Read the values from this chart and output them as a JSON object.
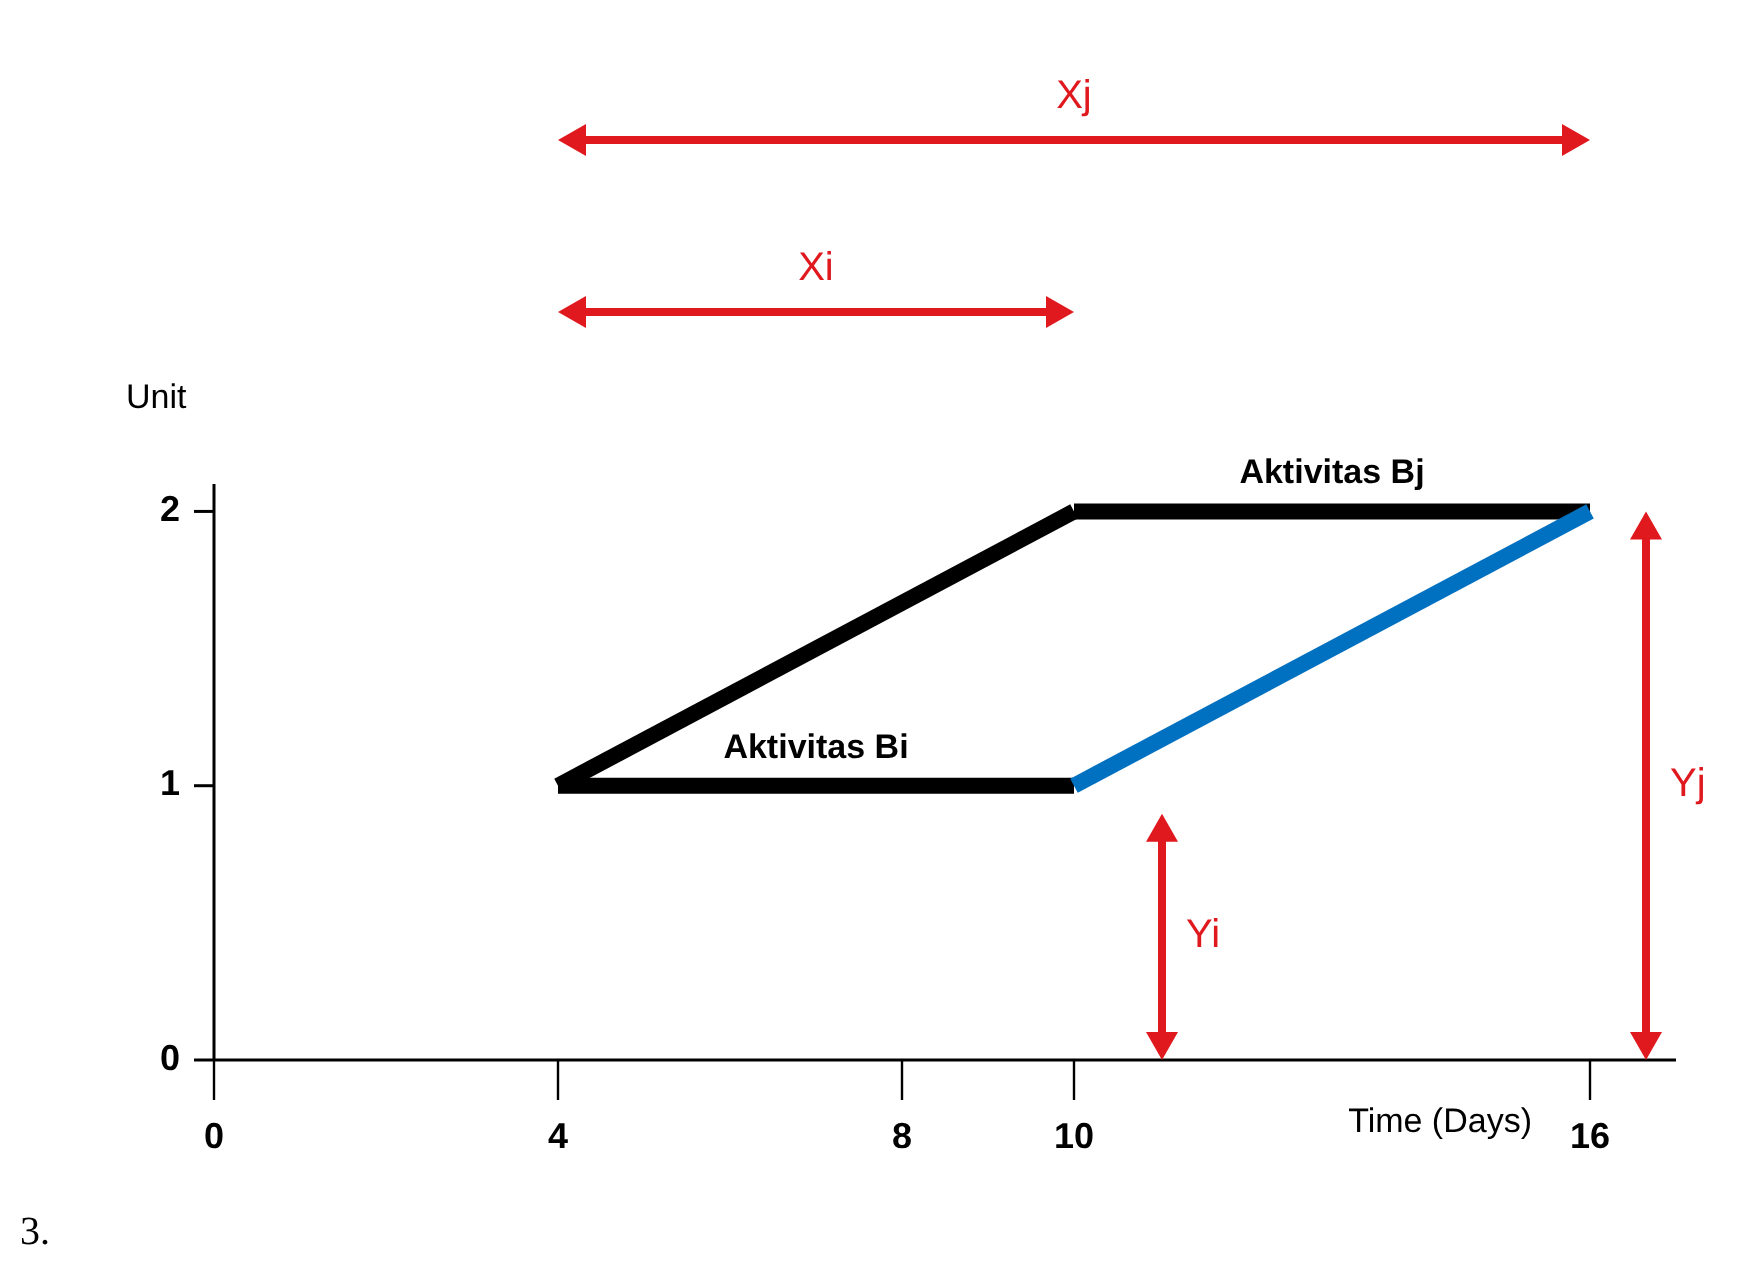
{
  "chart_data": {
    "type": "line",
    "xlabel": "Time (Days)",
    "ylabel": "Unit",
    "xlim": [
      0,
      17
    ],
    "xticks": [
      0,
      4,
      8,
      10,
      16
    ],
    "ylim": [
      0,
      2.1
    ],
    "yticks": [
      0,
      1,
      2
    ],
    "grid": false,
    "marker": "none",
    "line_style": "solid",
    "series": [
      {
        "name": "Aktivitas Bi",
        "color": "#000000",
        "x": [
          4,
          10
        ],
        "values": [
          1,
          1
        ]
      },
      {
        "color": "#000000",
        "x": [
          4,
          10
        ],
        "values": [
          1,
          2
        ]
      },
      {
        "name": "Aktivitas Bj",
        "color": "#000000",
        "x": [
          10,
          16
        ],
        "values": [
          2,
          2
        ]
      },
      {
        "color": "#0070c0",
        "x": [
          10,
          16
        ],
        "values": [
          1,
          2
        ]
      }
    ],
    "annotations": [
      "Xj",
      "Xi",
      "Yi",
      "Yj",
      "3."
    ]
  }
}
